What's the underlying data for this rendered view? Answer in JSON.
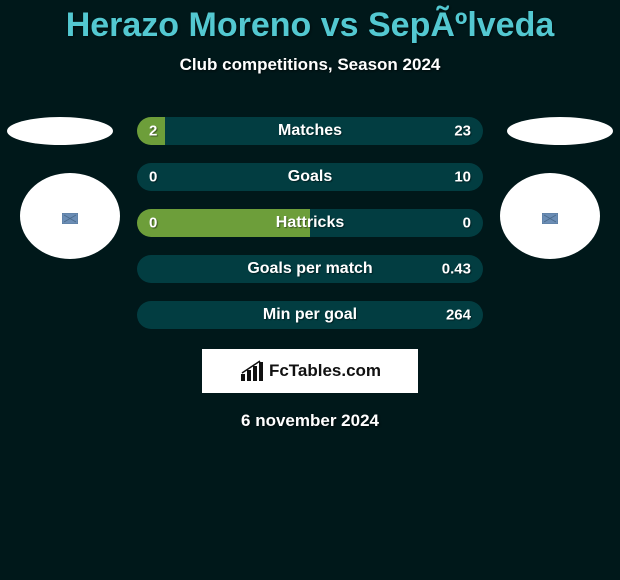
{
  "background_color": "#00181a",
  "title": {
    "text": "Herazo Moreno vs SepÃºlveda",
    "color": "#53c8d1",
    "fontsize": 34
  },
  "subtitle": {
    "text": "Club competitions, Season 2024",
    "color": "#ffffff",
    "fontsize": 17
  },
  "players": {
    "left": {
      "ellipse_color": "#ffffff",
      "circle_color": "#ffffff",
      "flag": "unknown"
    },
    "right": {
      "ellipse_color": "#ffffff",
      "circle_color": "#ffffff",
      "flag": "unknown"
    }
  },
  "bars": {
    "left_color": "#6d9e3a",
    "right_color": "#023d41",
    "label_fontsize": 16,
    "value_fontsize": 15,
    "rows": [
      {
        "label": "Matches",
        "left": "2",
        "right": "23",
        "left_frac": 0.08
      },
      {
        "label": "Goals",
        "left": "0",
        "right": "10",
        "left_frac": 0.0
      },
      {
        "label": "Hattricks",
        "left": "0",
        "right": "0",
        "left_frac": 0.5
      },
      {
        "label": "Goals per match",
        "left": "",
        "right": "0.43",
        "left_frac": 0.0
      },
      {
        "label": "Min per goal",
        "left": "",
        "right": "264",
        "left_frac": 0.0
      }
    ]
  },
  "branding": {
    "text": "FcTables.com",
    "fontsize": 17
  },
  "date": {
    "text": "6 november 2024",
    "fontsize": 17
  }
}
